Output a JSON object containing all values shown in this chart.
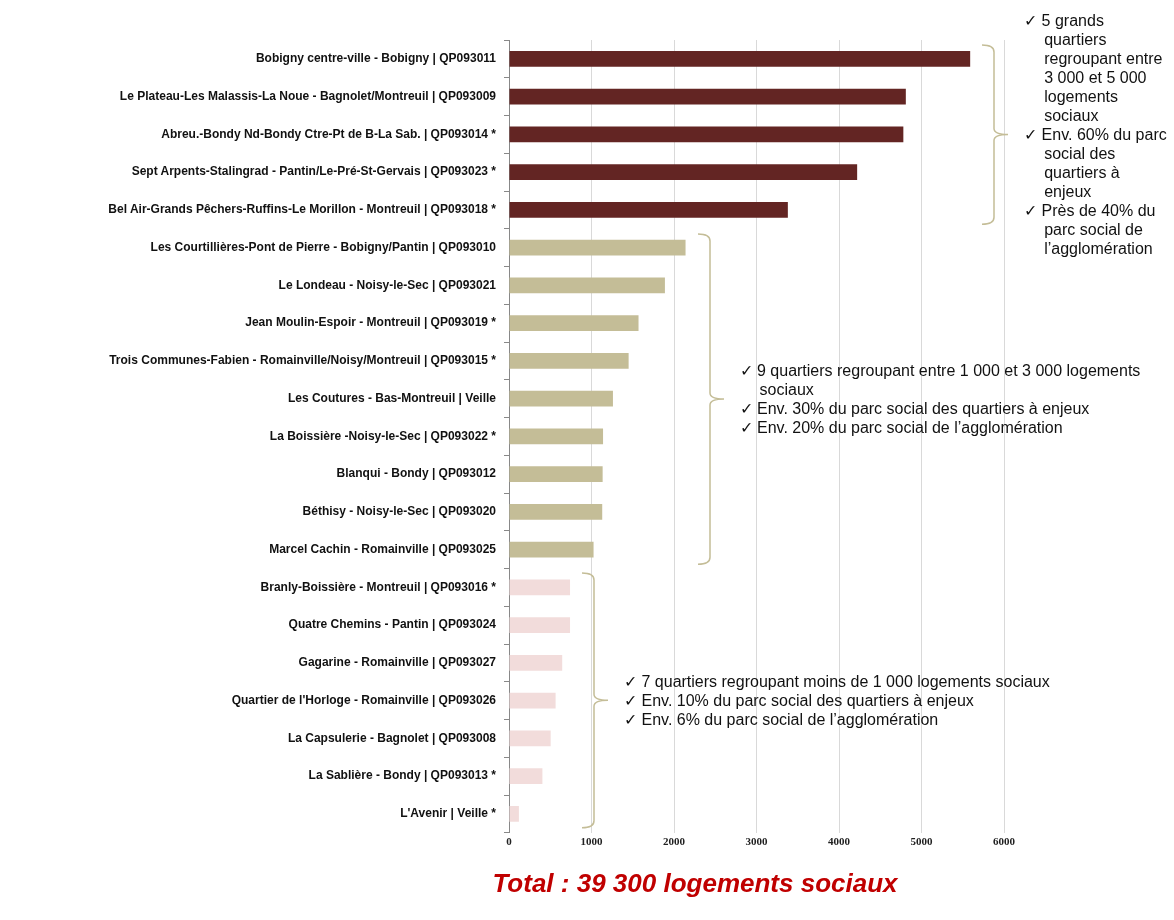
{
  "chart_data": {
    "type": "bar",
    "orientation": "horizontal",
    "categories": [
      "Bobigny centre-ville - Bobigny | QP093011",
      "Le Plateau-Les Malassis-La Noue - Bagnolet/Montreuil | QP093009",
      "Abreu.-Bondy Nd-Bondy Ctre-Pt de B-La Sab. | QP093014 *",
      "Sept Arpents-Stalingrad - Pantin/Le-Pré-St-Gervais | QP093023 *",
      "Bel Air-Grands Pêchers-Ruffins-Le Morillon - Montreuil | QP093018 *",
      "Les Courtillières-Pont de Pierre - Bobigny/Pantin | QP093010",
      "Le Londeau - Noisy-le-Sec | QP093021",
      "Jean Moulin-Espoir - Montreuil | QP093019 *",
      "Trois Communes-Fabien - Romainville/Noisy/Montreuil | QP093015 *",
      "Les Coutures - Bas-Montreuil | Veille",
      "La Boissière -Noisy-le-Sec | QP093022 *",
      "Blanqui - Bondy | QP093012",
      "Béthisy - Noisy-le-Sec | QP093020",
      "Marcel Cachin - Romainville | QP093025",
      "Branly-Boissière - Montreuil | QP093016 *",
      "Quatre Chemins - Pantin | QP093024",
      "Gagarine - Romainville | QP093027",
      "Quartier de l'Horloge - Romainville | QP093026",
      "La Capsulerie - Bagnolet | QP093008",
      "La Sablière - Bondy | QP093013 *",
      "L'Avenir | Veille *"
    ],
    "values": [
      5590,
      4810,
      4780,
      4220,
      3380,
      2140,
      1890,
      1570,
      1450,
      1260,
      1140,
      1135,
      1130,
      1025,
      740,
      740,
      645,
      565,
      505,
      405,
      120
    ],
    "colors": [
      "#632523",
      "#632523",
      "#632523",
      "#632523",
      "#632523",
      "#c4bd97",
      "#c4bd97",
      "#c4bd97",
      "#c4bd97",
      "#c4bd97",
      "#c4bd97",
      "#c4bd97",
      "#c4bd97",
      "#c4bd97",
      "#f2dcdb",
      "#f2dcdb",
      "#f2dcdb",
      "#f2dcdb",
      "#f2dcdb",
      "#f2dcdb",
      "#f2dcdb"
    ],
    "xlim": [
      0,
      6000
    ],
    "xticks": [
      0,
      1000,
      2000,
      3000,
      4000,
      5000,
      6000
    ],
    "grid": "x",
    "annotations": [
      "✓ 5 grands quartiers regroupant entre 3 000 et 5 000 logements sociaux\n✓ Env. 60% du parc social des quartiers à enjeux\n✓ Près de 40% du parc social de l’agglomération",
      "✓ 9 quartiers regroupant entre 1 000 et 3 000 logements sociaux\n✓ Env. 30% du parc social des quartiers à enjeux\n✓ Env. 20% du parc social de l’agglomération",
      "✓ 7 quartiers regroupant moins de 1 000 logements sociaux\n✓ Env. 10% du parc social des quartiers à enjeux\n✓ Env. 6% du parc social de l’agglomération",
      "Total : 39 300 logements sociaux"
    ]
  }
}
